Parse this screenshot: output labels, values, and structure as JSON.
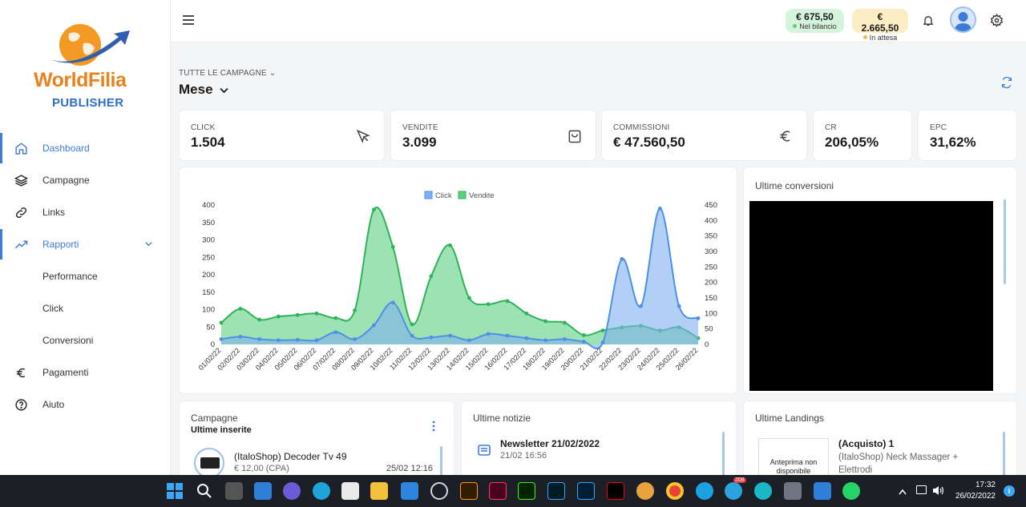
{
  "brand": {
    "name_part1": "World",
    "name_part2": "Filia",
    "sub": "PUBLISHER"
  },
  "sidebar": {
    "items": [
      {
        "label": "Dashboard",
        "icon": "home-icon",
        "active": true
      },
      {
        "label": "Campagne",
        "icon": "layers-icon"
      },
      {
        "label": "Links",
        "icon": "link-icon"
      },
      {
        "label": "Rapporti",
        "icon": "trending-icon",
        "active": true,
        "expanded": true
      },
      {
        "label": "Performance"
      },
      {
        "label": "Click"
      },
      {
        "label": "Conversioni"
      },
      {
        "label": "Pagamenti",
        "icon": "euro-icon"
      },
      {
        "label": "Aiuto",
        "icon": "help-icon"
      }
    ]
  },
  "topbar": {
    "balance": {
      "amount": "€ 675,50",
      "label": "Nel bilancio"
    },
    "pending": {
      "amount": "€ 2.665,50",
      "label": "In attesa"
    }
  },
  "header": {
    "campaign_filter": "TUTTE LE CAMPAGNE",
    "period": "Mese"
  },
  "kpis": [
    {
      "label": "CLICK",
      "value": "1.504",
      "icon": "cursor-icon"
    },
    {
      "label": "VENDITE",
      "value": "3.099",
      "icon": "bag-icon"
    },
    {
      "label": "COMMISSIONI",
      "value": "€ 47.560,50",
      "icon": "euro-icon"
    },
    {
      "label": "CR",
      "value": "206,05%"
    },
    {
      "label": "EPC",
      "value": "31,62%"
    }
  ],
  "chart_data": {
    "type": "area",
    "x": [
      "01/02/22",
      "02/02/22",
      "03/02/22",
      "04/02/22",
      "05/02/22",
      "06/02/22",
      "07/02/22",
      "08/02/22",
      "09/02/22",
      "10/02/22",
      "11/02/22",
      "12/02/22",
      "13/02/22",
      "14/02/22",
      "15/02/22",
      "16/02/22",
      "17/02/22",
      "18/02/22",
      "19/02/22",
      "20/02/22",
      "21/02/22",
      "22/02/22",
      "23/02/22",
      "24/02/22",
      "25/02/22",
      "26/02/22"
    ],
    "series": [
      {
        "name": "Click",
        "axis": "left",
        "color": "#7fb0f0",
        "values": [
          15,
          22,
          15,
          12,
          13,
          12,
          35,
          15,
          55,
          120,
          25,
          20,
          25,
          12,
          30,
          25,
          18,
          12,
          15,
          8,
          5,
          245,
          110,
          390,
          110,
          75
        ]
      },
      {
        "name": "Vendite",
        "axis": "right",
        "color": "#5bcf7e",
        "values": [
          70,
          115,
          80,
          90,
          95,
          100,
          85,
          110,
          435,
          315,
          65,
          220,
          320,
          150,
          130,
          140,
          100,
          75,
          70,
          30,
          45,
          55,
          60,
          45,
          55,
          20
        ]
      }
    ],
    "yleft": {
      "ticks": [
        0,
        50,
        100,
        150,
        200,
        250,
        300,
        350,
        400
      ],
      "ylim": [
        0,
        400
      ]
    },
    "yright": {
      "ticks": [
        0,
        50,
        100,
        150,
        200,
        250,
        300,
        350,
        400,
        450
      ],
      "ylim": [
        0,
        450
      ]
    },
    "legend": "top-center",
    "grid": false
  },
  "conversions": {
    "title": "Ultime conversioni"
  },
  "campaigns": {
    "title": "Campagne",
    "subtitle": "Ultime inserite",
    "items": [
      {
        "name": "(ItaloShop) Decoder Tv 49",
        "price": "€ 12,00 (CPA)",
        "date": "25/02 12:16"
      }
    ]
  },
  "news": {
    "title": "Ultime notizie",
    "items": [
      {
        "title": "Newsletter 21/02/2022",
        "date": "21/02 16:56"
      }
    ]
  },
  "landings": {
    "title": "Ultime Landings",
    "items": [
      {
        "thumb": "Anteprima non disponibile",
        "title": "(Acquisto) 1",
        "desc": "(ItaloShop) Neck Massager + Elettrodi"
      }
    ]
  },
  "taskbar": {
    "time": "17:32",
    "date": "26/02/2022",
    "telegram_badge": "208"
  }
}
